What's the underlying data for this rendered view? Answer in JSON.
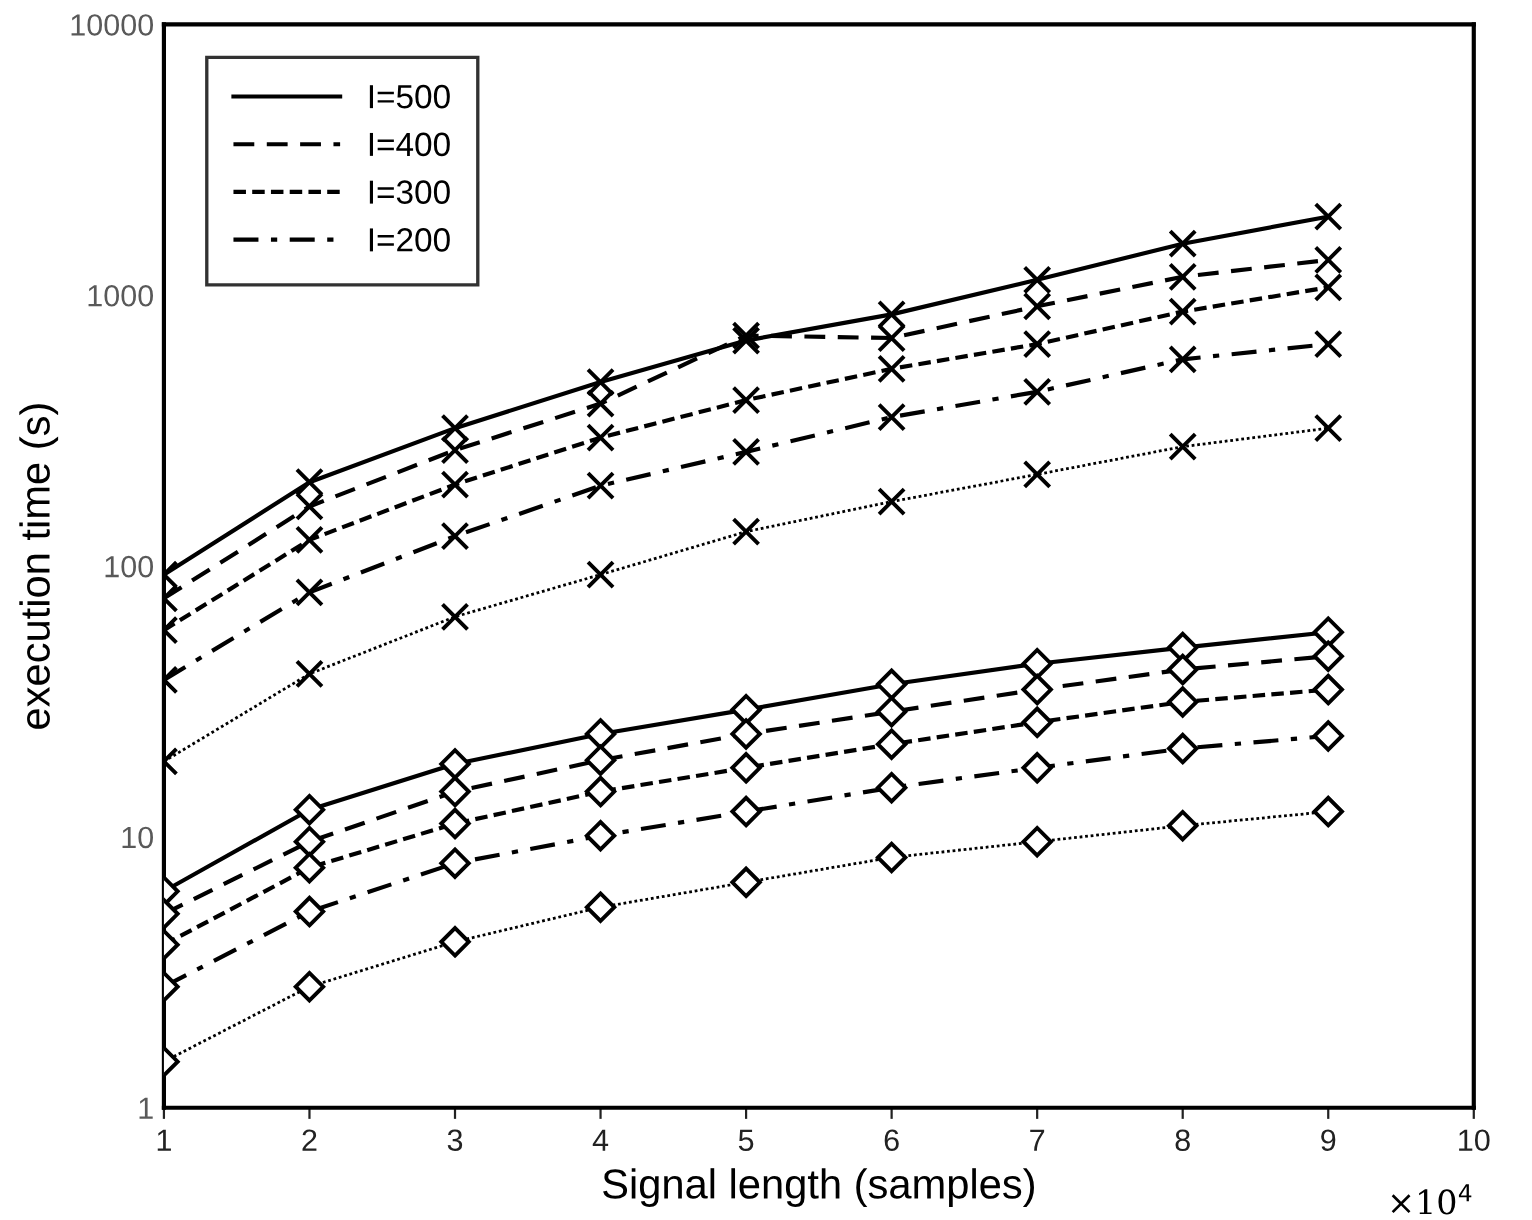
{
  "chart_data": {
    "type": "line",
    "xlabel": "Signal length (samples)",
    "ylabel": "execution time (s)",
    "x": [
      1,
      2,
      3,
      4,
      5,
      6,
      7,
      8,
      9
    ],
    "xlim": [
      1,
      10
    ],
    "xticks": [
      1,
      2,
      3,
      4,
      5,
      6,
      7,
      8,
      9,
      10
    ],
    "ylim": [
      1,
      10000
    ],
    "yticks": [
      1,
      10,
      100,
      1000,
      10000
    ],
    "log": "y",
    "grid": false,
    "legend": "top left",
    "annotations": [
      "×10$^{4}$"
    ],
    "series": [
      {
        "color": "#000000",
        "marker": "cross",
        "line_style": "solid",
        "values": [
          93,
          204,
          323,
          478,
          680,
          850,
          1140,
          1550,
          1950
        ]
      },
      {
        "color": "#000000",
        "marker": "cross",
        "line_style": "dashed",
        "values": [
          76,
          166,
          268,
          398,
          710,
          695,
          910,
          1170,
          1350
        ]
      },
      {
        "color": "#000000",
        "marker": "cross",
        "line_style": "short dashed",
        "values": [
          58,
          125,
          200,
          298,
          410,
          535,
          660,
          870,
          1070
        ]
      },
      {
        "color": "#000000",
        "marker": "cross",
        "line_style": "dashdot",
        "values": [
          38,
          80,
          129,
          198,
          264,
          355,
          440,
          580,
          660
        ]
      },
      {
        "color": "#000000",
        "marker": "cross",
        "line_style": "dotted",
        "values": [
          19,
          40,
          65,
          93,
          134,
          173,
          218,
          276,
          323
        ]
      },
      {
        "name": "I=500",
        "color": "#000000",
        "marker": "diamond",
        "line_style": "solid",
        "values": [
          6.3,
          12.6,
          18.6,
          24,
          29.5,
          36.6,
          43.6,
          50,
          57
        ]
      },
      {
        "name": "I=400",
        "color": "#000000",
        "marker": "diamond",
        "line_style": "dashed",
        "values": [
          5.2,
          9.6,
          14.7,
          19.2,
          24,
          29,
          35,
          41.5,
          46.5
        ]
      },
      {
        "name": "I=300",
        "color": "#000000",
        "marker": "diamond",
        "line_style": "short dashed",
        "values": [
          4.0,
          7.7,
          11.2,
          14.7,
          18,
          22,
          26.5,
          31.5,
          35
        ]
      },
      {
        "name": "I=200",
        "color": "#000000",
        "marker": "diamond",
        "line_style": "dashdot",
        "values": [
          2.8,
          5.3,
          8.0,
          10.1,
          12.4,
          15.2,
          18,
          21.2,
          23.6
        ]
      },
      {
        "color": "#000000",
        "marker": "diamond",
        "line_style": "dotted",
        "values": [
          1.48,
          2.8,
          4.1,
          5.5,
          6.8,
          8.4,
          9.6,
          11,
          12.4
        ]
      }
    ]
  }
}
